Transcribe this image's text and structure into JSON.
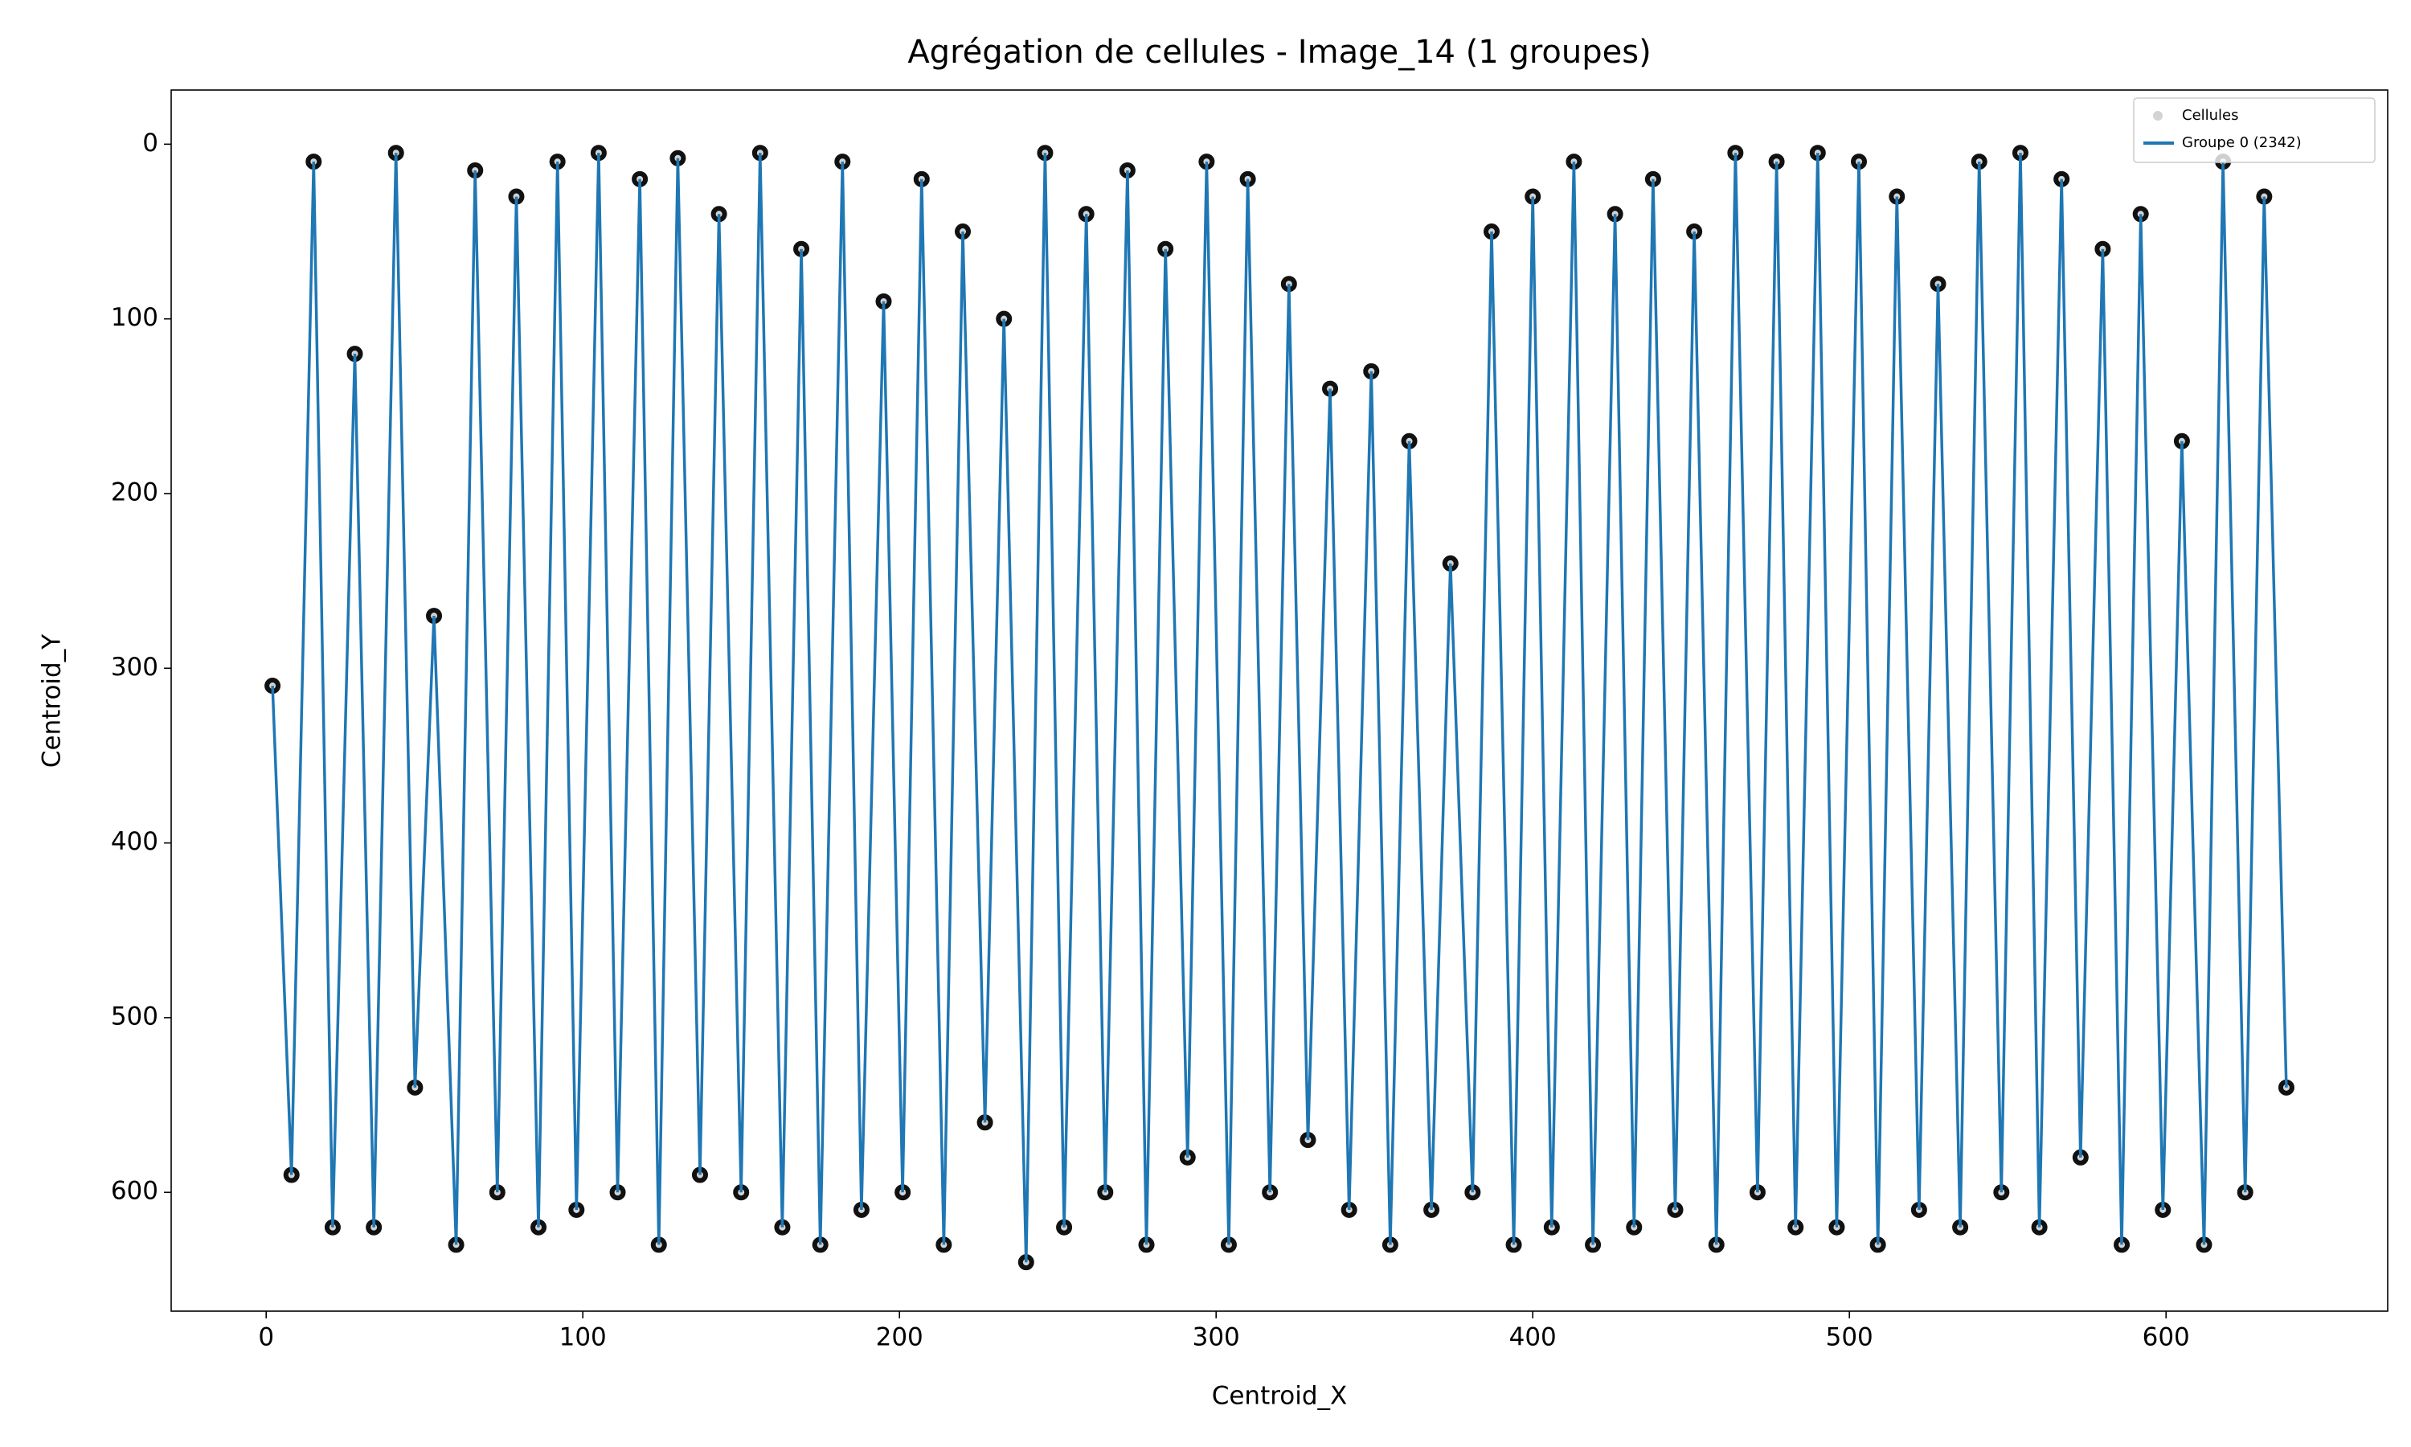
{
  "chart_data": {
    "type": "scatter-line",
    "title": "Agrégation de cellules - Image_14 (1 groupes)",
    "x_label": "Centroid_X",
    "y_label": "Centroid_Y",
    "xlim": [
      -30,
      670
    ],
    "xticks": [
      0,
      100,
      200,
      300,
      400,
      500,
      600
    ],
    "ylim": [
      -31,
      668
    ],
    "yticks": [
      0,
      100,
      200,
      300,
      400,
      500,
      600
    ],
    "y_inverted": true,
    "legend": "upper right",
    "x": [
      2,
      8,
      15,
      21,
      28,
      34,
      41,
      47,
      53,
      60,
      66,
      73,
      79,
      86,
      92,
      98,
      105,
      111,
      118,
      124,
      130,
      137,
      143,
      150,
      156,
      163,
      169,
      175,
      182,
      188,
      195,
      201,
      207,
      214,
      220,
      227,
      233,
      240,
      246,
      252,
      259,
      265,
      272,
      278,
      284,
      291,
      297,
      304,
      310,
      317,
      323,
      329,
      336,
      342,
      349,
      355,
      361,
      368,
      374,
      381,
      387,
      394,
      400,
      406,
      413,
      419,
      426,
      432,
      438,
      445,
      451,
      458,
      464,
      471,
      477,
      483,
      490,
      496,
      503,
      509,
      515,
      522,
      528,
      535,
      541,
      548,
      554,
      560,
      567,
      573,
      580,
      586,
      592,
      599,
      605,
      612,
      618,
      625,
      631,
      638
    ],
    "series": [
      {
        "name": "Cellules",
        "color": "#d3d3d3",
        "edge": "#111111",
        "kind": "scatter",
        "values": [
          310,
          590,
          10,
          620,
          120,
          620,
          5,
          540,
          270,
          630,
          15,
          600,
          30,
          620,
          10,
          610,
          5,
          600,
          20,
          630,
          8,
          590,
          40,
          600,
          5,
          620,
          60,
          630,
          10,
          610,
          90,
          600,
          20,
          630,
          50,
          560,
          100,
          640,
          5,
          620,
          40,
          600,
          15,
          630,
          60,
          580,
          10,
          630,
          20,
          600,
          80,
          570,
          140,
          610,
          130,
          630,
          170,
          610,
          240,
          600,
          50,
          630,
          30,
          620,
          10,
          630,
          40,
          620,
          20,
          610,
          50,
          630,
          5,
          600,
          10,
          620,
          5,
          620,
          10,
          630,
          30,
          610,
          80,
          620,
          10,
          600,
          5,
          620,
          20,
          580,
          60,
          630,
          40,
          610,
          170,
          630,
          10,
          600,
          30,
          540
        ]
      },
      {
        "name": "Groupe 0 (2342)",
        "color": "#1f77b4",
        "kind": "line",
        "values": [
          310,
          590,
          10,
          620,
          120,
          620,
          5,
          540,
          270,
          630,
          15,
          600,
          30,
          620,
          10,
          610,
          5,
          600,
          20,
          630,
          8,
          590,
          40,
          600,
          5,
          620,
          60,
          630,
          10,
          610,
          90,
          600,
          20,
          630,
          50,
          560,
          100,
          640,
          5,
          620,
          40,
          600,
          15,
          630,
          60,
          580,
          10,
          630,
          20,
          600,
          80,
          570,
          140,
          610,
          130,
          630,
          170,
          610,
          240,
          600,
          50,
          630,
          30,
          620,
          10,
          630,
          40,
          620,
          20,
          610,
          50,
          630,
          5,
          600,
          10,
          620,
          5,
          620,
          10,
          630,
          30,
          610,
          80,
          620,
          10,
          600,
          5,
          620,
          20,
          580,
          60,
          630,
          40,
          610,
          170,
          630,
          10,
          600,
          30,
          540
        ]
      }
    ]
  }
}
